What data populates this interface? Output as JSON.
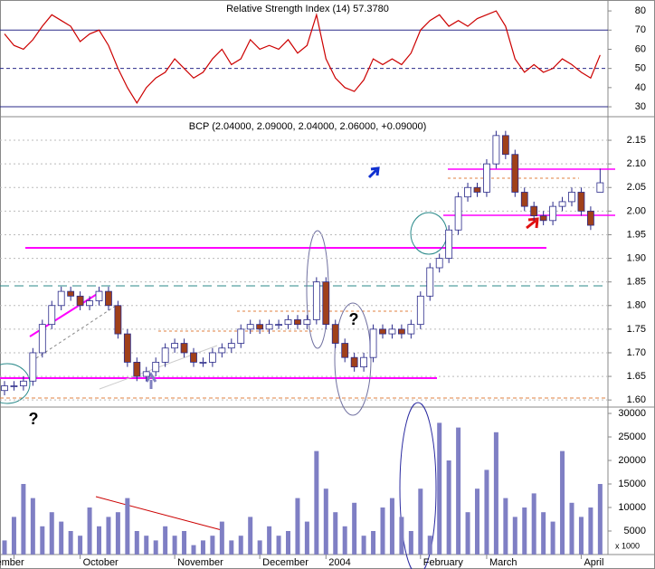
{
  "chart_data": [
    {
      "type": "line",
      "title": "Relative Strength Index (14) 57.3780",
      "color": "#cc0000",
      "values": [
        68,
        62,
        60,
        65,
        72,
        78,
        75,
        72,
        64,
        68,
        70,
        62,
        50,
        40,
        32,
        40,
        45,
        48,
        55,
        50,
        45,
        48,
        55,
        60,
        52,
        55,
        65,
        60,
        62,
        60,
        65,
        58,
        62,
        78,
        55,
        45,
        40,
        38,
        44,
        55,
        52,
        55,
        52,
        58,
        70,
        75,
        78,
        72,
        75,
        72,
        76,
        78,
        80,
        72,
        55,
        48,
        52,
        48,
        50,
        55,
        52,
        48,
        45,
        57
      ],
      "ylim": [
        25.3,
        85.7
      ],
      "yticks": [
        30,
        40,
        50,
        60,
        70,
        80
      ],
      "grid": false
    },
    {
      "type": "candlestick",
      "title": "BCP (2.04000, 2.09000, 2.04000, 2.06000, +0.09000)",
      "up_color": "#ffffff",
      "down_color": "#a0401a",
      "edge_color": "#2a2a8a",
      "open": [
        1.62,
        1.63,
        1.63,
        1.64,
        1.7,
        1.76,
        1.8,
        1.83,
        1.82,
        1.8,
        1.81,
        1.83,
        1.8,
        1.74,
        1.68,
        1.65,
        1.66,
        1.68,
        1.71,
        1.72,
        1.7,
        1.68,
        1.68,
        1.7,
        1.71,
        1.72,
        1.75,
        1.76,
        1.75,
        1.76,
        1.76,
        1.77,
        1.76,
        1.77,
        1.85,
        1.76,
        1.72,
        1.69,
        1.67,
        1.69,
        1.75,
        1.74,
        1.75,
        1.74,
        1.76,
        1.82,
        1.88,
        1.9,
        1.96,
        2.03,
        2.05,
        2.04,
        2.1,
        2.16,
        2.12,
        2.04,
        2.01,
        1.99,
        1.98,
        2.01,
        2.02,
        2.04,
        2.0,
        2.04
      ],
      "high": [
        1.64,
        1.64,
        1.65,
        1.71,
        1.77,
        1.81,
        1.84,
        1.84,
        1.83,
        1.82,
        1.84,
        1.84,
        1.81,
        1.75,
        1.69,
        1.67,
        1.69,
        1.72,
        1.73,
        1.73,
        1.71,
        1.69,
        1.71,
        1.72,
        1.73,
        1.76,
        1.77,
        1.77,
        1.77,
        1.77,
        1.78,
        1.78,
        1.78,
        1.86,
        1.86,
        1.77,
        1.73,
        1.7,
        1.7,
        1.76,
        1.76,
        1.76,
        1.76,
        1.77,
        1.83,
        1.89,
        1.91,
        1.97,
        2.04,
        2.06,
        2.06,
        2.11,
        2.17,
        2.17,
        2.13,
        2.05,
        2.02,
        2.0,
        2.02,
        2.03,
        2.05,
        2.05,
        2.01,
        2.09
      ],
      "low": [
        1.61,
        1.62,
        1.62,
        1.63,
        1.69,
        1.75,
        1.79,
        1.81,
        1.79,
        1.79,
        1.8,
        1.79,
        1.73,
        1.67,
        1.64,
        1.64,
        1.65,
        1.67,
        1.7,
        1.69,
        1.67,
        1.67,
        1.67,
        1.69,
        1.7,
        1.71,
        1.74,
        1.74,
        1.74,
        1.75,
        1.75,
        1.75,
        1.75,
        1.76,
        1.75,
        1.71,
        1.68,
        1.66,
        1.66,
        1.68,
        1.73,
        1.73,
        1.73,
        1.73,
        1.75,
        1.81,
        1.87,
        1.89,
        1.95,
        2.02,
        2.03,
        2.03,
        2.09,
        2.11,
        2.03,
        2.0,
        1.98,
        1.97,
        1.97,
        2.0,
        2.01,
        1.99,
        1.96,
        2.04
      ],
      "close": [
        1.63,
        1.63,
        1.64,
        1.7,
        1.76,
        1.8,
        1.83,
        1.82,
        1.8,
        1.81,
        1.83,
        1.8,
        1.74,
        1.68,
        1.65,
        1.66,
        1.68,
        1.71,
        1.72,
        1.7,
        1.68,
        1.68,
        1.7,
        1.71,
        1.72,
        1.75,
        1.76,
        1.75,
        1.76,
        1.76,
        1.77,
        1.76,
        1.77,
        1.85,
        1.76,
        1.72,
        1.69,
        1.67,
        1.69,
        1.75,
        1.74,
        1.75,
        1.74,
        1.76,
        1.82,
        1.88,
        1.9,
        1.96,
        2.03,
        2.05,
        2.04,
        2.1,
        2.16,
        2.12,
        2.04,
        2.01,
        1.99,
        1.98,
        2.01,
        2.02,
        2.04,
        2.0,
        1.97,
        2.06
      ],
      "ylim": [
        1.585,
        2.198
      ],
      "yticks": [
        {
          "value": 1.6,
          "label": "1.60"
        },
        1.65,
        {
          "value": 1.7,
          "label": "1.70"
        },
        1.75,
        {
          "value": 1.8,
          "label": "1.80"
        },
        1.85,
        {
          "value": 1.9,
          "label": "1.90"
        },
        1.95,
        {
          "value": 2,
          "label": "2.00"
        },
        2.05,
        {
          "value": 2.1,
          "label": "2.10"
        },
        2.15
      ],
      "grid": true,
      "annotations": [
        {
          "text": "?",
          "color": "#f07020"
        },
        {
          "text": "?",
          "color": "#8080c0"
        }
      ]
    },
    {
      "type": "bar",
      "color": "#7f7fc4",
      "axis_label": "x 1000",
      "categories": [
        null,
        "ember",
        null,
        null,
        null,
        null,
        null,
        null,
        "October",
        null,
        null,
        null,
        null,
        null,
        null,
        null,
        null,
        null,
        "November",
        null,
        null,
        null,
        null,
        null,
        null,
        null,
        null,
        "December",
        null,
        null,
        null,
        null,
        null,
        null,
        "2004",
        null,
        null,
        null,
        null,
        null,
        null,
        null,
        null,
        null,
        "February",
        null,
        null,
        null,
        null,
        null,
        null,
        "March",
        null,
        null,
        null,
        null,
        null,
        null,
        null,
        null,
        null,
        "April",
        null,
        null
      ],
      "values": [
        3000,
        8000,
        15000,
        12000,
        6000,
        9000,
        7000,
        5000,
        4000,
        10000,
        6000,
        8000,
        9000,
        12000,
        5000,
        4000,
        3000,
        6000,
        4000,
        5000,
        2000,
        3000,
        4000,
        7000,
        3000,
        4000,
        8000,
        3000,
        6000,
        4000,
        5000,
        12000,
        7000,
        22000,
        14000,
        9000,
        6000,
        11000,
        4000,
        5000,
        10000,
        12000,
        8000,
        5000,
        14000,
        4000,
        28000,
        20000,
        27000,
        9000,
        14000,
        18000,
        26000,
        12000,
        8000,
        10000,
        13000,
        9000,
        7000,
        22000,
        11000,
        8000,
        10000,
        15000
      ],
      "ylim": [
        0,
        31350
      ],
      "yticks": [
        5000,
        10000,
        15000,
        20000,
        25000,
        30000
      ]
    }
  ]
}
